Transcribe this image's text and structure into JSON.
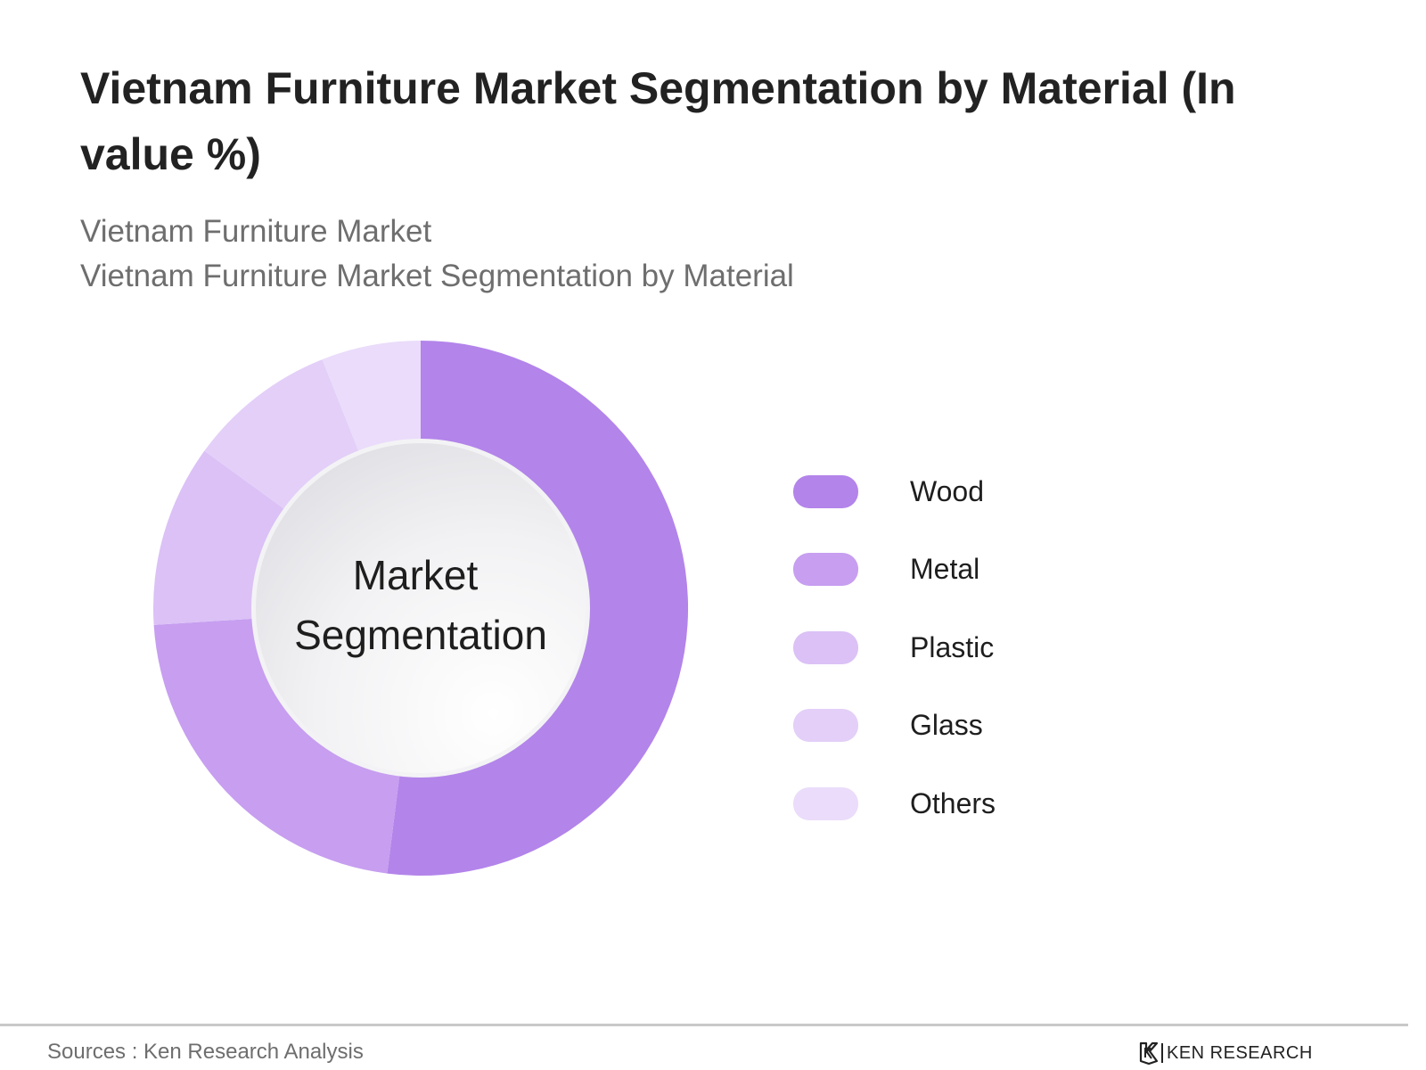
{
  "header": {
    "title": "Vietnam Furniture Market Segmentation by Material (In value %)",
    "subtitle_line1": "Vietnam Furniture Market",
    "subtitle_line2": "Vietnam Furniture Market Segmentation by Material"
  },
  "chart_data": {
    "type": "pie",
    "variant": "donut",
    "title": "Vietnam Furniture Market Segmentation by Material (In value %)",
    "center_label": [
      "Market",
      "Segmentation"
    ],
    "categories": [
      "Wood",
      "Metal",
      "Plastic",
      "Glass",
      "Others"
    ],
    "values": [
      52,
      22,
      11,
      9,
      6
    ],
    "colors": [
      "#b384ea",
      "#c79ef0",
      "#dbc1f6",
      "#e3cff8",
      "#eadcfa"
    ],
    "legend_position": "right"
  },
  "footer": {
    "sources": "Sources : Ken Research Analysis",
    "brand": "KEN RESEARCH",
    "brand_logo_icon": "ken-research-logo-icon"
  }
}
